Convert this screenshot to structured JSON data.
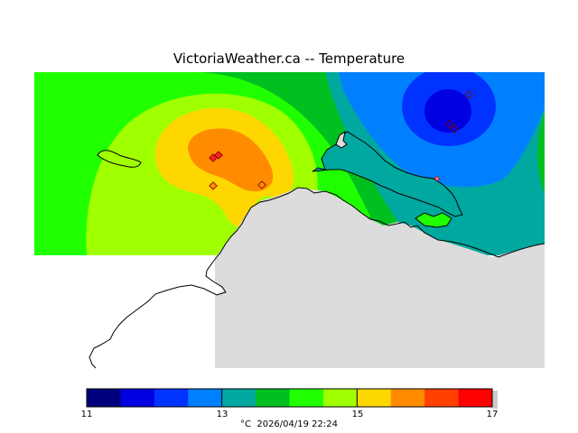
{
  "title": "VictoriaWeather.ca -- Temperature",
  "legend": {
    "ticks": [
      "11",
      "13",
      "15",
      "17"
    ],
    "unit": "°C",
    "timestamp": "2026/04/19 22:24",
    "colors": [
      "#00007f",
      "#0000e0",
      "#0033ff",
      "#0080ff",
      "#00a8a0",
      "#00c020",
      "#20ff00",
      "#a0ff00",
      "#ffd700",
      "#ff8c00",
      "#ff4000",
      "#ff0000"
    ]
  },
  "map": {
    "land_color": "#dcdcdc",
    "coast_color": "#000000",
    "station_color": "#ff2020",
    "zone_colors": {
      "warm_core": "#ff8c00",
      "warm": "#ffd700",
      "mild": "#a0ff00",
      "mid": "#20ff00",
      "cool": "#00c020",
      "cooler": "#00a8a0",
      "cold": "#0080ff",
      "colder": "#0033ff",
      "coldest": "#0000e0"
    }
  }
}
